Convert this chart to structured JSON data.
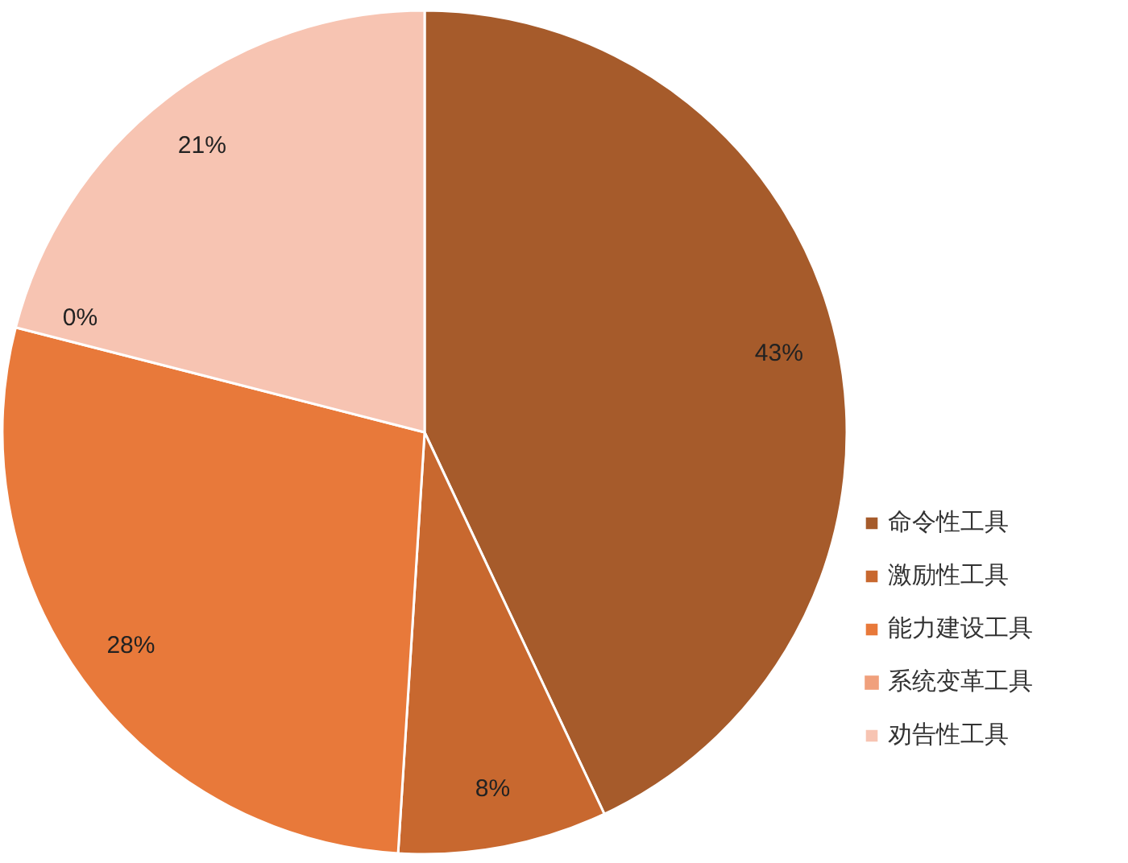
{
  "chart_data": {
    "type": "pie",
    "categories": [
      "命令性工具",
      "激励性工具",
      "能力建设工具",
      "系统变革工具",
      "劝告性工具"
    ],
    "values": [
      43,
      8,
      28,
      0,
      21
    ],
    "value_labels": [
      "43%",
      "8%",
      "28%",
      "0%",
      "21%"
    ],
    "colors": [
      "#a65b2b",
      "#c8682f",
      "#e8793a",
      "#f0a07c",
      "#f7c4b2"
    ],
    "legend": "right"
  }
}
